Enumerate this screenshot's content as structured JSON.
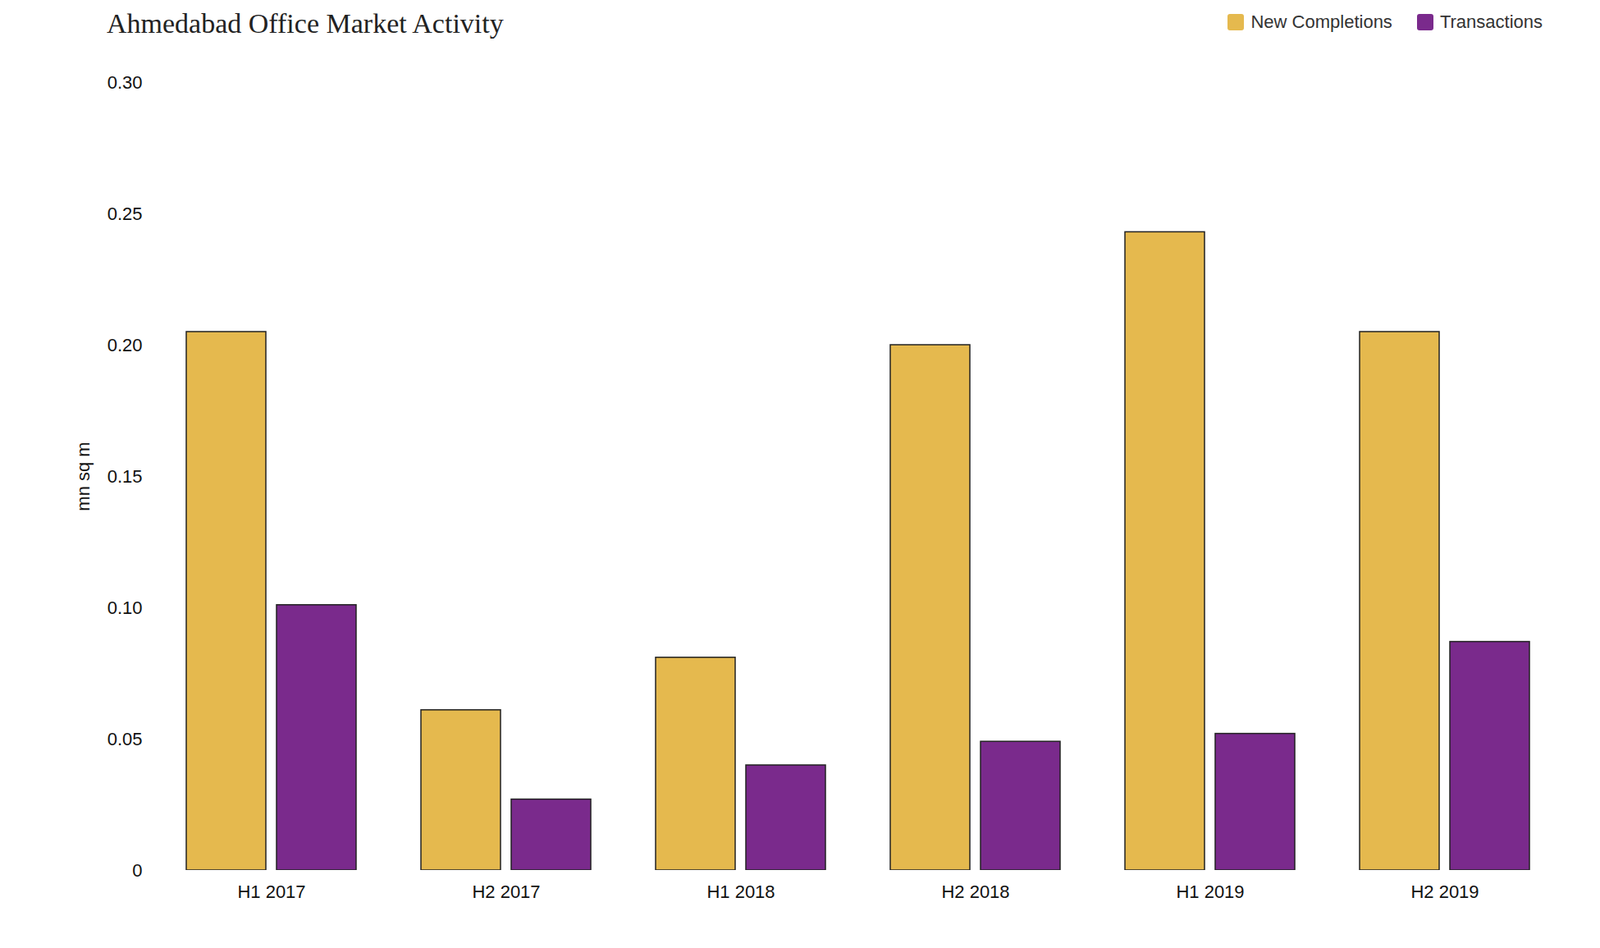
{
  "chart_data": {
    "type": "bar",
    "title": "Ahmedabad Office Market Activity",
    "y_label": "mn sq m",
    "categories": [
      "H1 2017",
      "H2 2017",
      "H1 2018",
      "H2 2018",
      "H1 2019",
      "H2 2019"
    ],
    "series": [
      {
        "name": "New Completions",
        "color": "#e5b94e",
        "values": [
          0.205,
          0.061,
          0.081,
          0.2,
          0.243,
          0.205
        ]
      },
      {
        "name": "Transactions",
        "color": "#7a2a8c",
        "values": [
          0.101,
          0.027,
          0.04,
          0.049,
          0.052,
          0.087
        ]
      }
    ],
    "ylim": [
      0,
      0.3
    ],
    "yticks": [
      0,
      0.05,
      {
        "value": 0.1,
        "label": "0.10"
      },
      0.15,
      {
        "value": 0.2,
        "label": "0.20"
      },
      0.25,
      {
        "value": 0.3,
        "label": "0.30"
      }
    ],
    "grid": false,
    "legend": "top-right"
  }
}
